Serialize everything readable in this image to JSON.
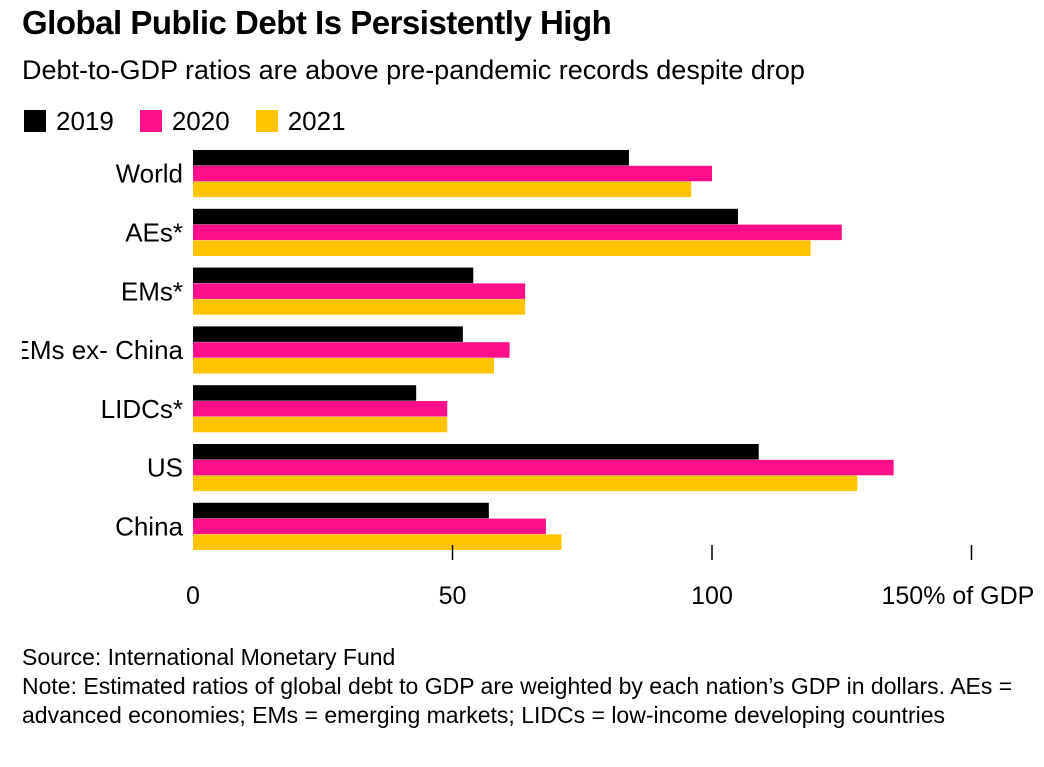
{
  "title": "Global Public Debt Is Persistently High",
  "subtitle": "Debt-to-GDP ratios are above pre-pandemic records despite drop",
  "source": "Source: International Monetary Fund",
  "note": "Note: Estimated ratios of global debt to GDP are weighted by each nation’s GDP in dollars. AEs = advanced economies; EMs = emerging markets; LIDCs = low-income developing countries",
  "colors": {
    "2019": "#000000",
    "2020": "#ff0f8c",
    "2021": "#ffc300"
  },
  "chart_data": {
    "type": "bar",
    "orientation": "horizontal",
    "categories": [
      "World",
      "AEs*",
      "EMs*",
      "EMs ex- China",
      "LIDCs*",
      "US",
      "China"
    ],
    "series": [
      {
        "name": "2019",
        "values": [
          84,
          105,
          54,
          52,
          43,
          109,
          57
        ]
      },
      {
        "name": "2020",
        "values": [
          100,
          125,
          64,
          61,
          49,
          135,
          68
        ]
      },
      {
        "name": "2021",
        "values": [
          96,
          119,
          64,
          58,
          49,
          128,
          71
        ]
      }
    ],
    "xlim": [
      0,
      150
    ],
    "x_ticks": [
      0,
      50,
      100,
      150
    ],
    "x_tick_labels": [
      "0",
      "50",
      "100",
      "150% of GDP"
    ],
    "legend_position": "top-left",
    "grid": false
  }
}
